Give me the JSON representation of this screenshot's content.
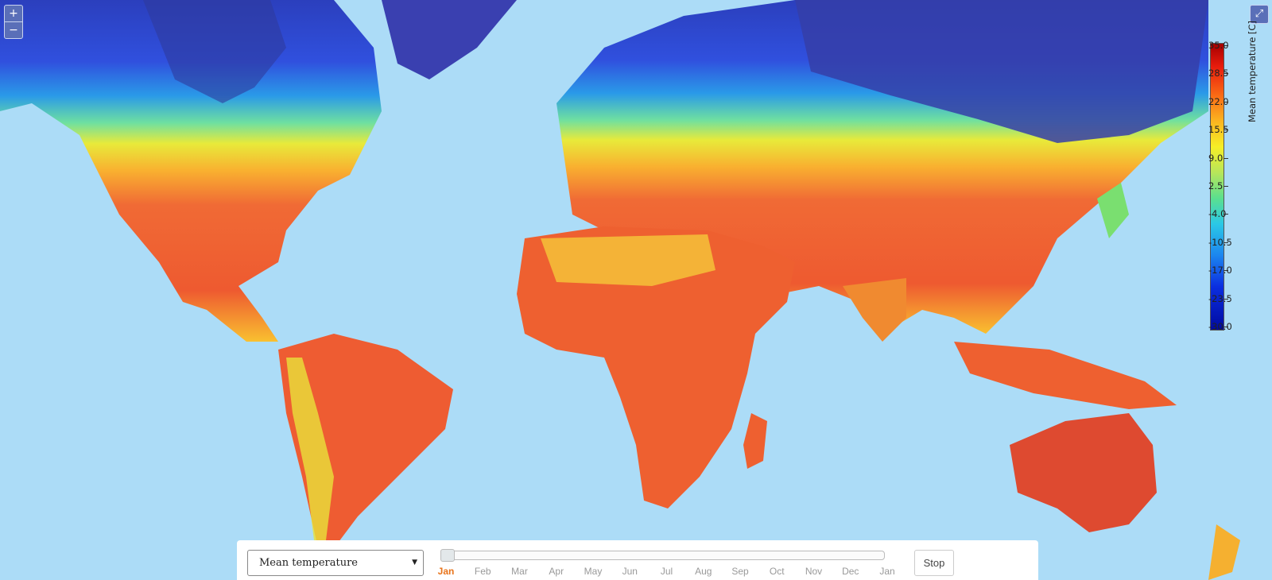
{
  "map": {
    "variable": "Mean temperature",
    "zoom_in_label": "+",
    "zoom_out_label": "−",
    "fullscreen_icon": "expand-icon"
  },
  "legend": {
    "title": "Mean temperature [C]",
    "ticks": [
      "35.0",
      "28.5",
      "22.0",
      "15.5",
      "9.0",
      "2.5",
      "-4.0",
      "-10.5",
      "-17.0",
      "-23.5",
      "-30.0"
    ],
    "min": -30.0,
    "max": 35.0
  },
  "controls": {
    "select_value": "Mean temperature",
    "stop_label": "Stop",
    "current_month_index": 0,
    "months": [
      "Jan",
      "Feb",
      "Mar",
      "Apr",
      "May",
      "Jun",
      "Jul",
      "Aug",
      "Sep",
      "Oct",
      "Nov",
      "Dec",
      "Jan"
    ]
  }
}
